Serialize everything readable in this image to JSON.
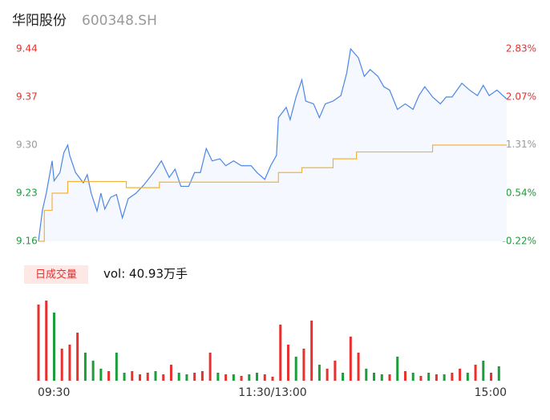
{
  "title": "华阳股份",
  "code": "600348.SH",
  "chart_data": [
    {
      "type": "line",
      "xlim": [
        0,
        240
      ],
      "xticks": [
        {
          "value": 0,
          "label": "09:30"
        },
        {
          "value": 120,
          "label": "11:30/13:00"
        },
        {
          "value": 240,
          "label": "15:00"
        }
      ],
      "ylim": [
        9.16,
        9.44
      ],
      "yticks": [
        9.44,
        9.37,
        {
          "value": 9.3,
          "label": "9.30"
        },
        9.23,
        9.16
      ],
      "y2lim": [
        -0.22,
        2.83
      ],
      "y2ticks": [
        {
          "value": 2.83,
          "label": "2.83%"
        },
        {
          "value": 2.07,
          "label": "2.07%"
        },
        {
          "value": 1.31,
          "label": "1.31%"
        },
        {
          "value": 0.54,
          "label": "0.54%"
        },
        {
          "value": -0.22,
          "label": "-0.22%"
        }
      ],
      "tick_colors": [
        "#e8312f",
        "#999999",
        "#1a9d3a"
      ],
      "grid": false,
      "series": [
        {
          "color": "#4a86e8",
          "area": true,
          "x": [
            0,
            2,
            4,
            7,
            8,
            11,
            13,
            15,
            16,
            19,
            23,
            25,
            27,
            30,
            32,
            34,
            37,
            40,
            43,
            46,
            50,
            54,
            59,
            63,
            67,
            70,
            73,
            77,
            80,
            83,
            86,
            89,
            93,
            96,
            100,
            104,
            109,
            112,
            116,
            119,
            122,
            123,
            127,
            129,
            132,
            135,
            137,
            141,
            144,
            147,
            151,
            155,
            158,
            160,
            164,
            167,
            170,
            174,
            177,
            180,
            184,
            188,
            192,
            195,
            198,
            202,
            206,
            209,
            212,
            217,
            221,
            225,
            228,
            231,
            235,
            240
          ],
          "values": [
            9.16,
            9.205,
            9.23,
            9.277,
            9.248,
            9.26,
            9.289,
            9.3,
            9.285,
            9.26,
            9.245,
            9.257,
            9.23,
            9.204,
            9.23,
            9.207,
            9.224,
            9.228,
            9.194,
            9.222,
            9.23,
            9.242,
            9.26,
            9.277,
            9.253,
            9.265,
            9.24,
            9.24,
            9.26,
            9.26,
            9.295,
            9.277,
            9.28,
            9.27,
            9.277,
            9.27,
            9.27,
            9.26,
            9.25,
            9.27,
            9.285,
            9.34,
            9.355,
            9.337,
            9.37,
            9.395,
            9.364,
            9.36,
            9.34,
            9.36,
            9.364,
            9.372,
            9.405,
            9.44,
            9.427,
            9.4,
            9.41,
            9.4,
            9.385,
            9.38,
            9.352,
            9.36,
            9.352,
            9.372,
            9.385,
            9.37,
            9.36,
            9.37,
            9.37,
            9.39,
            9.38,
            9.372,
            9.387,
            9.372,
            9.38,
            9.367
          ]
        },
        {
          "color": "#f4b23a",
          "area": false,
          "step": true,
          "x": [
            0,
            3,
            7,
            15,
            45,
            62,
            123,
            135,
            151,
            163,
            202,
            240
          ],
          "values": [
            9.16,
            9.205,
            9.23,
            9.247,
            9.238,
            9.246,
            9.26,
            9.267,
            9.28,
            9.29,
            9.3,
            9.3
          ]
        }
      ]
    },
    {
      "type": "bar",
      "label": "日成交量",
      "volume_label": "vol: 40.93万手",
      "xlim": [
        0,
        240
      ],
      "ylim": [
        0,
        100
      ],
      "x": [
        0,
        4,
        8,
        12,
        16,
        20,
        24,
        28,
        32,
        36,
        40,
        44,
        48,
        52,
        56,
        60,
        64,
        68,
        72,
        76,
        80,
        84,
        88,
        92,
        96,
        100,
        104,
        108,
        112,
        116,
        120,
        124,
        128,
        132,
        136,
        140,
        144,
        148,
        152,
        156,
        160,
        164,
        168,
        172,
        176,
        180,
        184,
        188,
        192,
        196,
        200,
        204,
        208,
        212,
        216,
        220,
        224,
        228,
        232,
        236
      ],
      "values": [
        95,
        100,
        85,
        40,
        45,
        60,
        35,
        25,
        15,
        12,
        35,
        10,
        12,
        8,
        10,
        12,
        8,
        20,
        10,
        8,
        10,
        12,
        35,
        10,
        8,
        8,
        6,
        8,
        10,
        8,
        5,
        70,
        45,
        30,
        40,
        75,
        20,
        15,
        25,
        10,
        55,
        35,
        15,
        10,
        8,
        8,
        30,
        12,
        10,
        6,
        10,
        8,
        8,
        10,
        15,
        10,
        20,
        25,
        10,
        18
      ],
      "colors": [
        "#e8312f",
        "#e8312f",
        "#1a9d3a",
        "#e8312f",
        "#e8312f",
        "#e8312f",
        "#1a9d3a",
        "#1a9d3a",
        "#1a9d3a",
        "#e8312f",
        "#1a9d3a",
        "#1a9d3a",
        "#e8312f",
        "#e8312f",
        "#e8312f",
        "#1a9d3a",
        "#e8312f",
        "#e8312f",
        "#1a9d3a",
        "#1a9d3a",
        "#e8312f",
        "#e8312f",
        "#e8312f",
        "#1a9d3a",
        "#e8312f",
        "#1a9d3a",
        "#e8312f",
        "#1a9d3a",
        "#1a9d3a",
        "#e8312f",
        "#e8312f",
        "#e8312f",
        "#e8312f",
        "#1a9d3a",
        "#e8312f",
        "#e8312f",
        "#1a9d3a",
        "#e8312f",
        "#e8312f",
        "#1a9d3a",
        "#e8312f",
        "#e8312f",
        "#1a9d3a",
        "#1a9d3a",
        "#1a9d3a",
        "#e8312f",
        "#1a9d3a",
        "#e8312f",
        "#1a9d3a",
        "#e8312f",
        "#1a9d3a",
        "#e8312f",
        "#1a9d3a",
        "#e8312f",
        "#e8312f",
        "#1a9d3a",
        "#e8312f",
        "#1a9d3a",
        "#e8312f",
        "#1a9d3a"
      ]
    }
  ]
}
